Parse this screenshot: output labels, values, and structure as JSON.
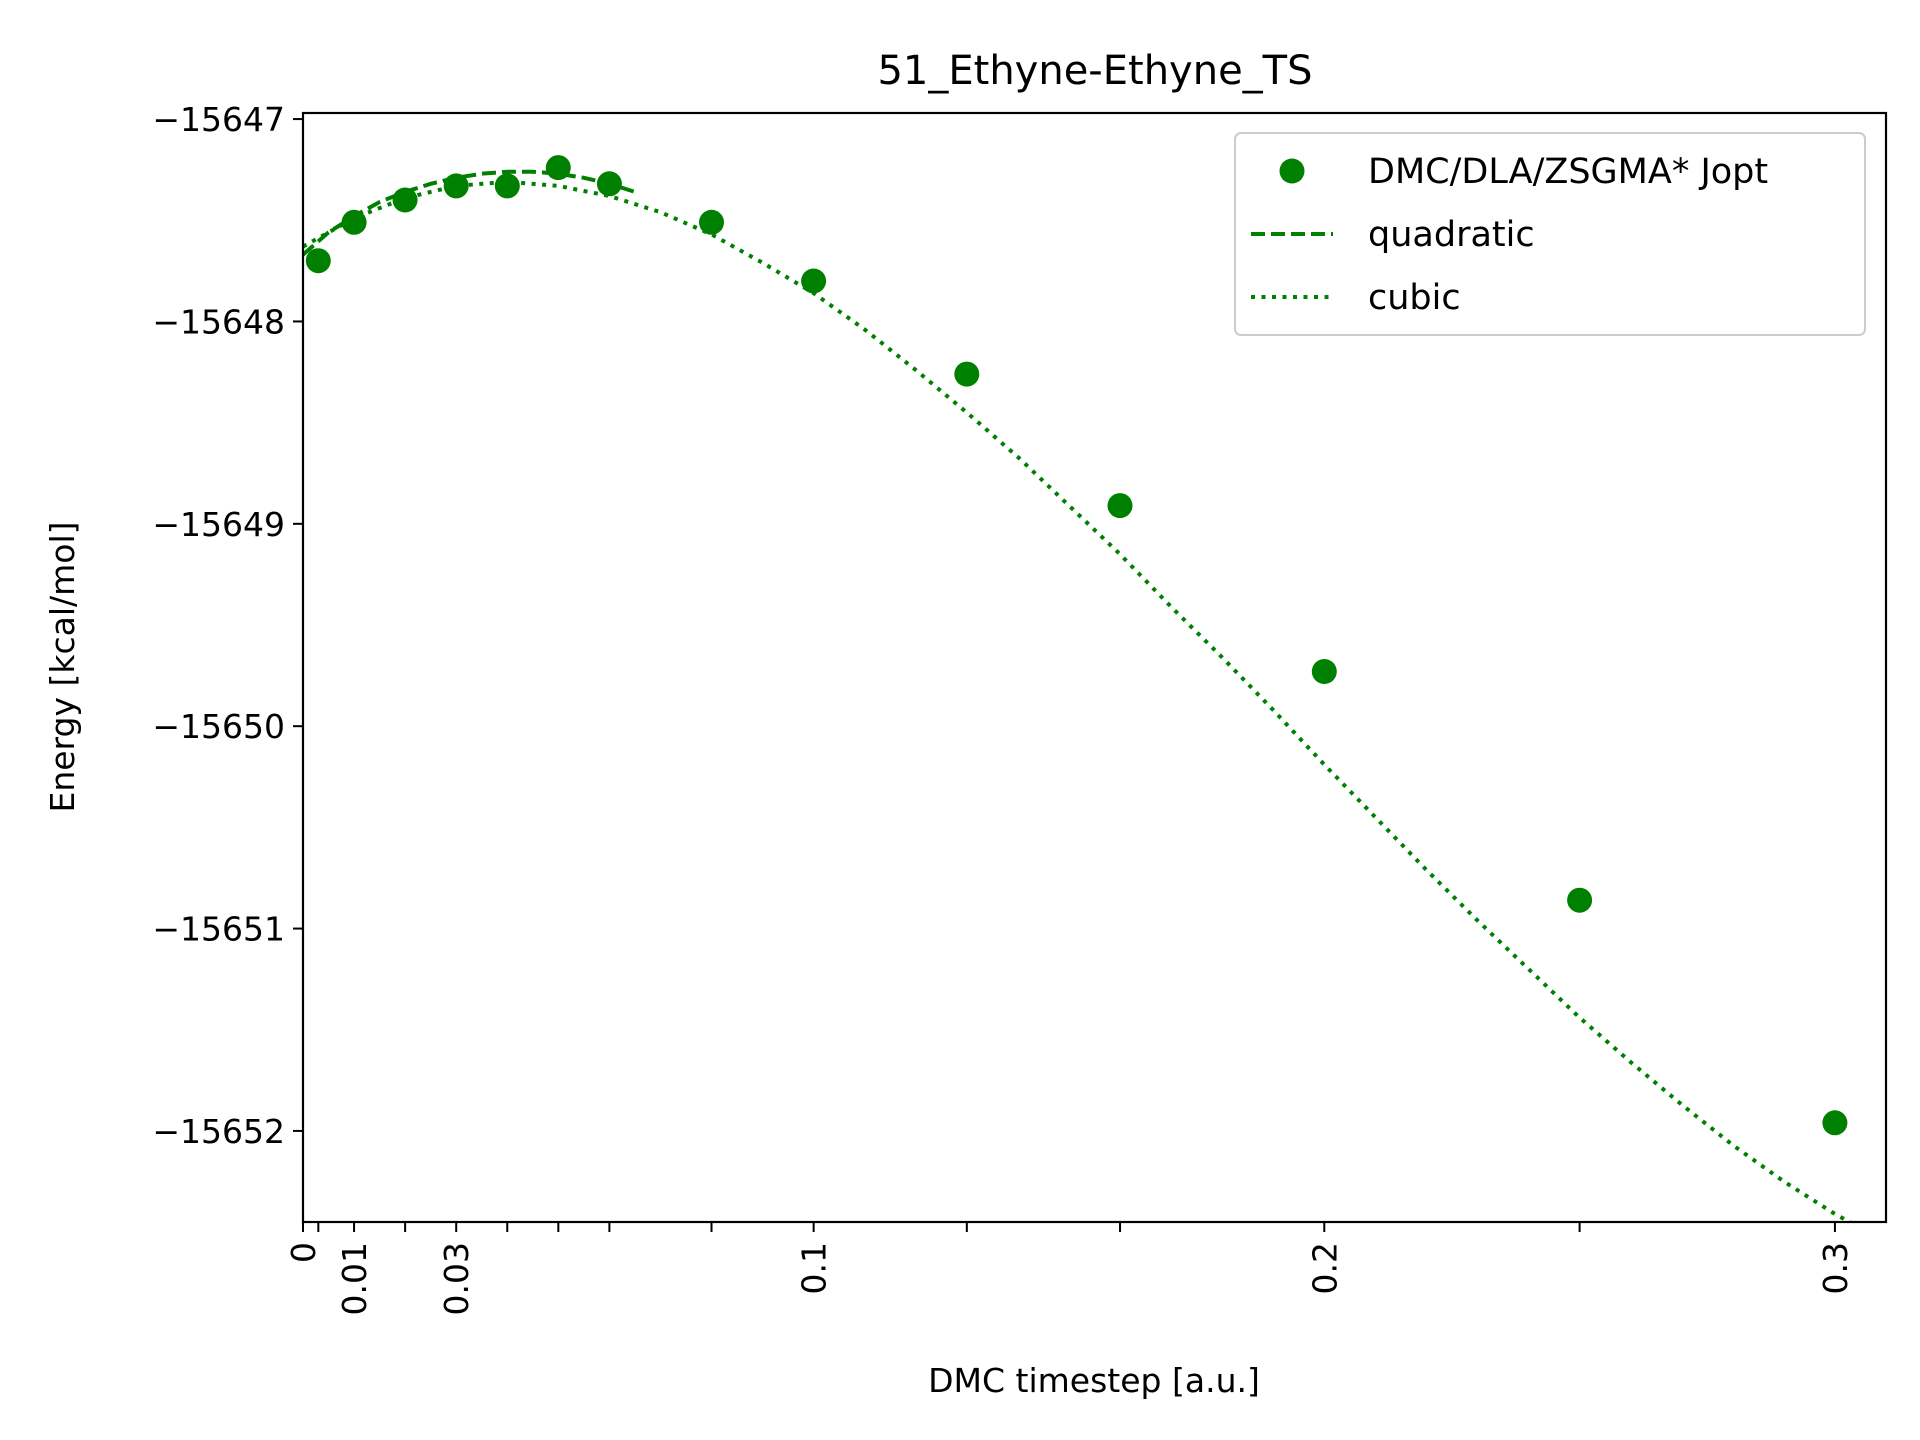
{
  "chart_data": {
    "type": "scatter",
    "title": "51_Ethyne-Ethyne_TS",
    "xlabel": "DMC timestep [a.u.]",
    "ylabel": "Energy [kcal/mol]",
    "xlim": [
      0,
      0.31
    ],
    "ylim": [
      -15652.45,
      -15646.97
    ],
    "xticks": [
      0,
      0.003,
      0.01,
      0.02,
      0.03,
      0.04,
      0.05,
      0.06,
      0.08,
      0.1,
      0.13,
      0.16,
      0.2,
      0.25,
      0.3
    ],
    "xtick_labels": [
      "0",
      "",
      "0.01",
      "",
      "0.03",
      "",
      "",
      "",
      "",
      "0.1",
      "",
      "",
      "0.2",
      "",
      "0.3"
    ],
    "yticks": [
      -15647,
      -15648,
      -15649,
      -15650,
      -15651,
      -15652
    ],
    "ytick_labels": [
      "−15647",
      "−15648",
      "−15649",
      "−15650",
      "−15651",
      "−15652"
    ],
    "grid": false,
    "legend_position": "top-right",
    "color": "#008000",
    "series": [
      {
        "name": "DMC/DLA/ZSGMA* Jopt",
        "style": "markers",
        "x": [
          0.003,
          0.01,
          0.02,
          0.03,
          0.04,
          0.05,
          0.06,
          0.08,
          0.1,
          0.13,
          0.16,
          0.2,
          0.25,
          0.3
        ],
        "y": [
          -15647.7,
          -15647.51,
          -15647.4,
          -15647.33,
          -15647.33,
          -15647.24,
          -15647.32,
          -15647.51,
          -15647.8,
          -15648.26,
          -15648.91,
          -15649.73,
          -15650.86,
          -15651.96
        ]
      },
      {
        "name": "quadratic",
        "style": "dashed",
        "x": [
          0,
          0.005,
          0.01,
          0.015,
          0.02,
          0.025,
          0.03,
          0.035,
          0.04,
          0.045,
          0.05,
          0.055,
          0.06,
          0.065
        ],
        "y": [
          -15647.67,
          -15647.56,
          -15647.48,
          -15647.41,
          -15647.36,
          -15647.32,
          -15647.29,
          -15647.27,
          -15647.26,
          -15647.26,
          -15647.27,
          -15647.29,
          -15647.32,
          -15647.36
        ]
      },
      {
        "name": "cubic",
        "style": "dotted",
        "x": [
          0,
          0.01,
          0.02,
          0.03,
          0.04,
          0.05,
          0.06,
          0.07,
          0.08,
          0.09,
          0.1,
          0.11,
          0.12,
          0.13,
          0.14,
          0.15,
          0.16,
          0.17,
          0.18,
          0.19,
          0.2,
          0.21,
          0.22,
          0.23,
          0.24,
          0.25,
          0.26,
          0.27,
          0.28,
          0.29,
          0.3,
          0.31
        ],
        "y": [
          -15647.63,
          -15647.49,
          -15647.39,
          -15647.33,
          -15647.31,
          -15647.33,
          -15647.38,
          -15647.46,
          -15647.57,
          -15647.71,
          -15647.86,
          -15648.04,
          -15648.24,
          -15648.45,
          -15648.67,
          -15648.91,
          -15649.15,
          -15649.41,
          -15649.66,
          -15649.92,
          -15650.19,
          -15650.45,
          -15650.71,
          -15650.96,
          -15651.2,
          -15651.44,
          -15651.66,
          -15651.87,
          -15652.07,
          -15652.25,
          -15652.41,
          -15652.55
        ]
      }
    ]
  }
}
